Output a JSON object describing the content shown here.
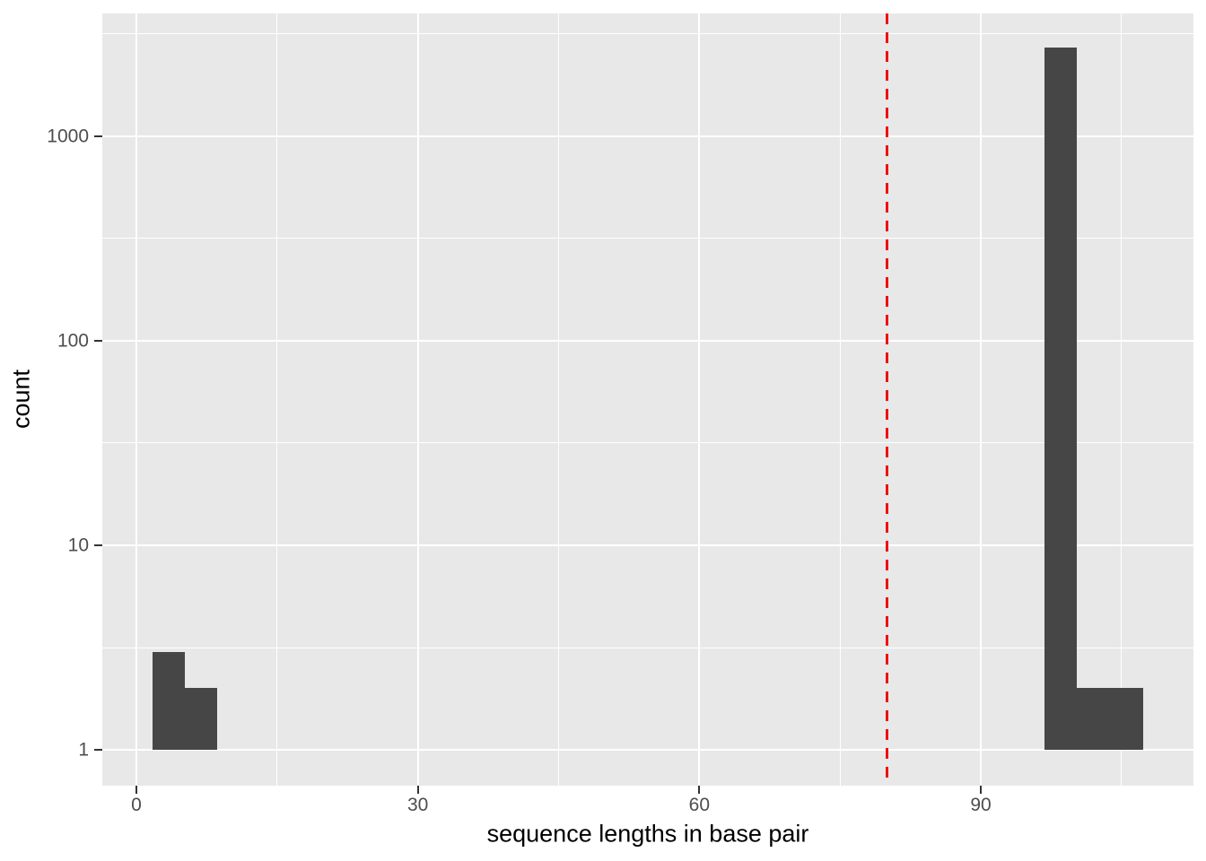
{
  "chart_data": {
    "type": "bar",
    "subtype": "histogram",
    "title": "",
    "xlabel": "sequence lengths in base pair",
    "ylabel": "count",
    "y_scale": "log10",
    "x_ticks": [
      0,
      30,
      60,
      90
    ],
    "x_minor": [
      15,
      45,
      75,
      105
    ],
    "y_ticks": [
      1,
      10,
      100,
      1000
    ],
    "y_minor_log": [
      0.5,
      1.5,
      2.5,
      3.5
    ],
    "xlim": [
      -3.63,
      112.66
    ],
    "ylim_log": [
      -0.175,
      3.6
    ],
    "bar_baseline_count": 1,
    "bars": [
      {
        "x_start": 1.7,
        "x_end": 5.15,
        "count": 3
      },
      {
        "x_start": 5.15,
        "x_end": 8.6,
        "count": 2
      },
      {
        "x_start": 96.8,
        "x_end": 100.25,
        "count": 2700
      },
      {
        "x_start": 100.25,
        "x_end": 103.8,
        "count": 2
      },
      {
        "x_start": 103.8,
        "x_end": 107.3,
        "count": 2
      }
    ],
    "vline": {
      "x": 80,
      "style": "dashed",
      "color": "#ee1111",
      "width": 3,
      "dash": 12,
      "gap": 9
    },
    "grid": {
      "major_width": 2,
      "minor_width": 1,
      "color": "#ffffff"
    },
    "colors": {
      "bar": "#464646",
      "panel_bg": "#e8e8e8",
      "figure_bg": "#ffffff",
      "tick_label": "#4d4d4d",
      "axis_title": "#000000",
      "tick_mark": "#333333"
    },
    "legend": null
  }
}
